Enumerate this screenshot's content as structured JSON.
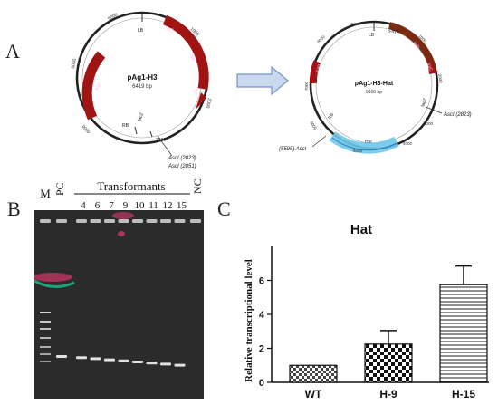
{
  "panel_a": {
    "letter": "A",
    "plasmid1": {
      "name": "pAg1-H3",
      "size": "6419 bp",
      "ticks": [
        "6000",
        "1000",
        "2000",
        "3000",
        "4000",
        "5000"
      ],
      "features": [
        "LB",
        "RB",
        "lacZ",
        "trpC",
        "hph",
        "trpC",
        "Kan"
      ],
      "sites": [
        "AscI (2823)",
        "AscI (2851)"
      ]
    },
    "plasmid2": {
      "name": "pAg1-H3-Hat",
      "size": "9160 bp",
      "ticks": [
        "9000",
        "1000",
        "2000",
        "3000",
        "4000",
        "5000",
        "6000",
        "7000",
        "8000"
      ],
      "features": [
        "LB",
        "p-hyb",
        "hph",
        "trpC",
        "lacZ",
        "RB",
        "Hat",
        "Kan"
      ],
      "sites": [
        "AscI (2823)",
        "(5595) AscI"
      ]
    }
  },
  "panel_b": {
    "letter": "B",
    "lane_m": "M",
    "lane_pc": "PC",
    "header": "Transformants",
    "lanes": [
      "4",
      "6",
      "7",
      "9",
      "10",
      "11",
      "12",
      "15"
    ],
    "lane_nc": "NC"
  },
  "panel_c": {
    "letter": "C",
    "chart_data": {
      "type": "bar",
      "title": "Hat",
      "ylabel": "Relative transcriptional level",
      "categories": [
        "WT",
        "H-9",
        "H-15"
      ],
      "values": [
        1.0,
        2.25,
        5.75
      ],
      "errors": [
        0,
        0.8,
        1.1
      ],
      "ylim": [
        0,
        8
      ],
      "yticks": [
        "0",
        "2",
        "4",
        "6"
      ],
      "patterns": [
        "checker",
        "checker-bold",
        "horizontal-lines"
      ]
    }
  },
  "colors": {
    "feature_red": "#a01414",
    "feature_brown": "#7a2a10",
    "hat_blue": "#6ec6ea",
    "arrow_fill": "#c9d8ef",
    "arrow_stroke": "#7891c2"
  }
}
